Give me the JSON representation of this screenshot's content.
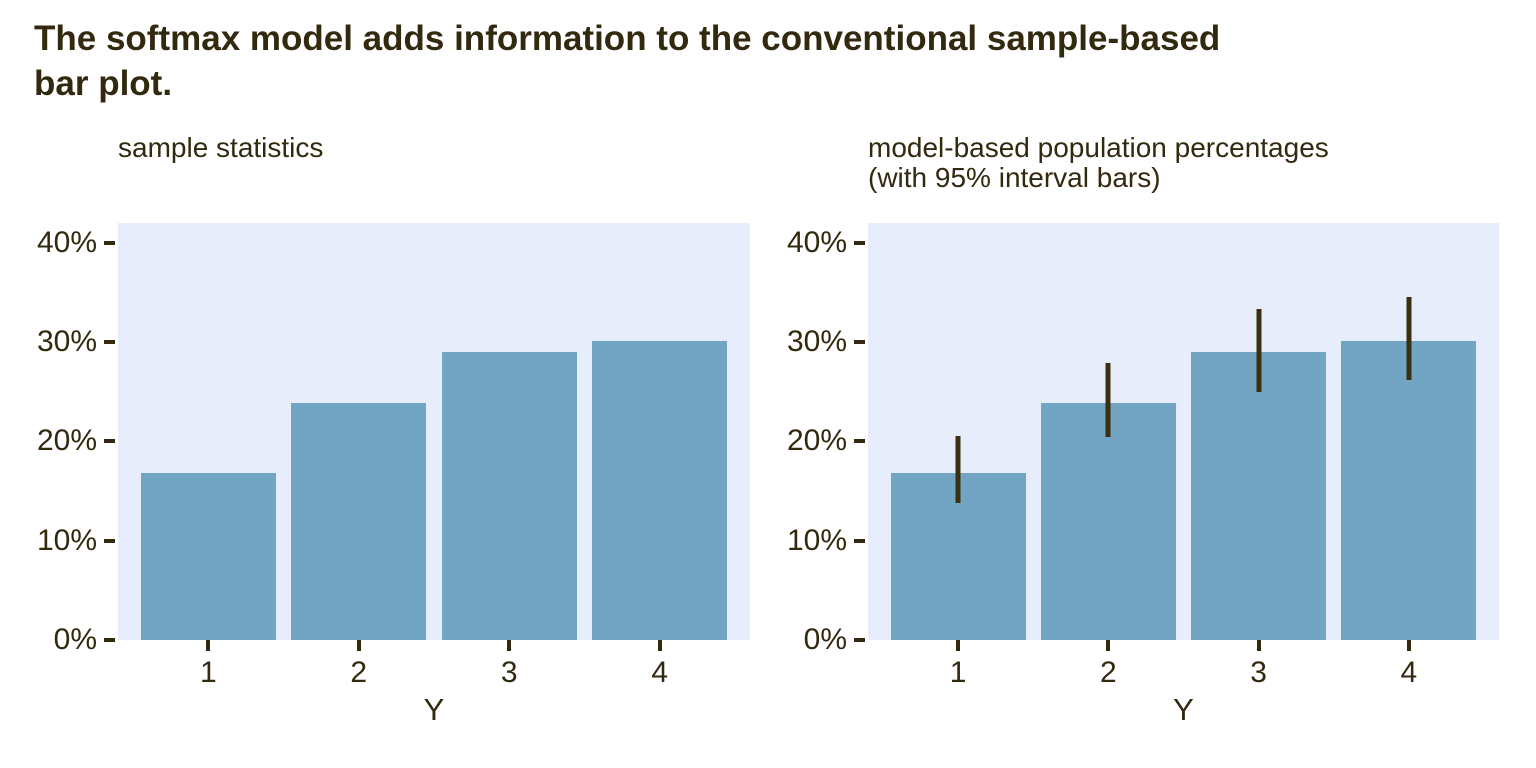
{
  "title": "The softmax model adds information to the conventional sample-based\nbar plot.",
  "colors": {
    "page_background": "#FFFFFF",
    "ink": "#32290F",
    "bar_fill": "#72A5C3",
    "panel_background": "#E8EDFC",
    "interval_bar": "#3A3010"
  },
  "chart_data": [
    {
      "type": "bar",
      "title": "sample statistics",
      "xlabel": "Y",
      "ylabel": "",
      "categories": [
        "1",
        "2",
        "3",
        "4"
      ],
      "values": [
        16.8,
        23.9,
        29.0,
        30.1
      ],
      "ylim": [
        0,
        42
      ],
      "yticks": {
        "values": [
          0,
          10,
          20,
          30,
          40
        ],
        "labels": [
          "0%",
          "10%",
          "20%",
          "30%",
          "40%"
        ]
      },
      "grid": false,
      "legend": false
    },
    {
      "type": "bar",
      "title": "model-based population percentages\n(with 95% interval bars)",
      "xlabel": "Y",
      "ylabel": "",
      "categories": [
        "1",
        "2",
        "3",
        "4"
      ],
      "values": [
        16.8,
        23.9,
        29.0,
        30.1
      ],
      "error_bars": {
        "label": "95% interval",
        "low": [
          13.8,
          20.4,
          25.0,
          26.2
        ],
        "high": [
          20.5,
          27.9,
          33.3,
          34.5
        ]
      },
      "ylim": [
        0,
        42
      ],
      "yticks": {
        "values": [
          0,
          10,
          20,
          30,
          40
        ],
        "labels": [
          "0%",
          "10%",
          "20%",
          "30%",
          "40%"
        ]
      },
      "grid": false,
      "legend": false
    }
  ]
}
